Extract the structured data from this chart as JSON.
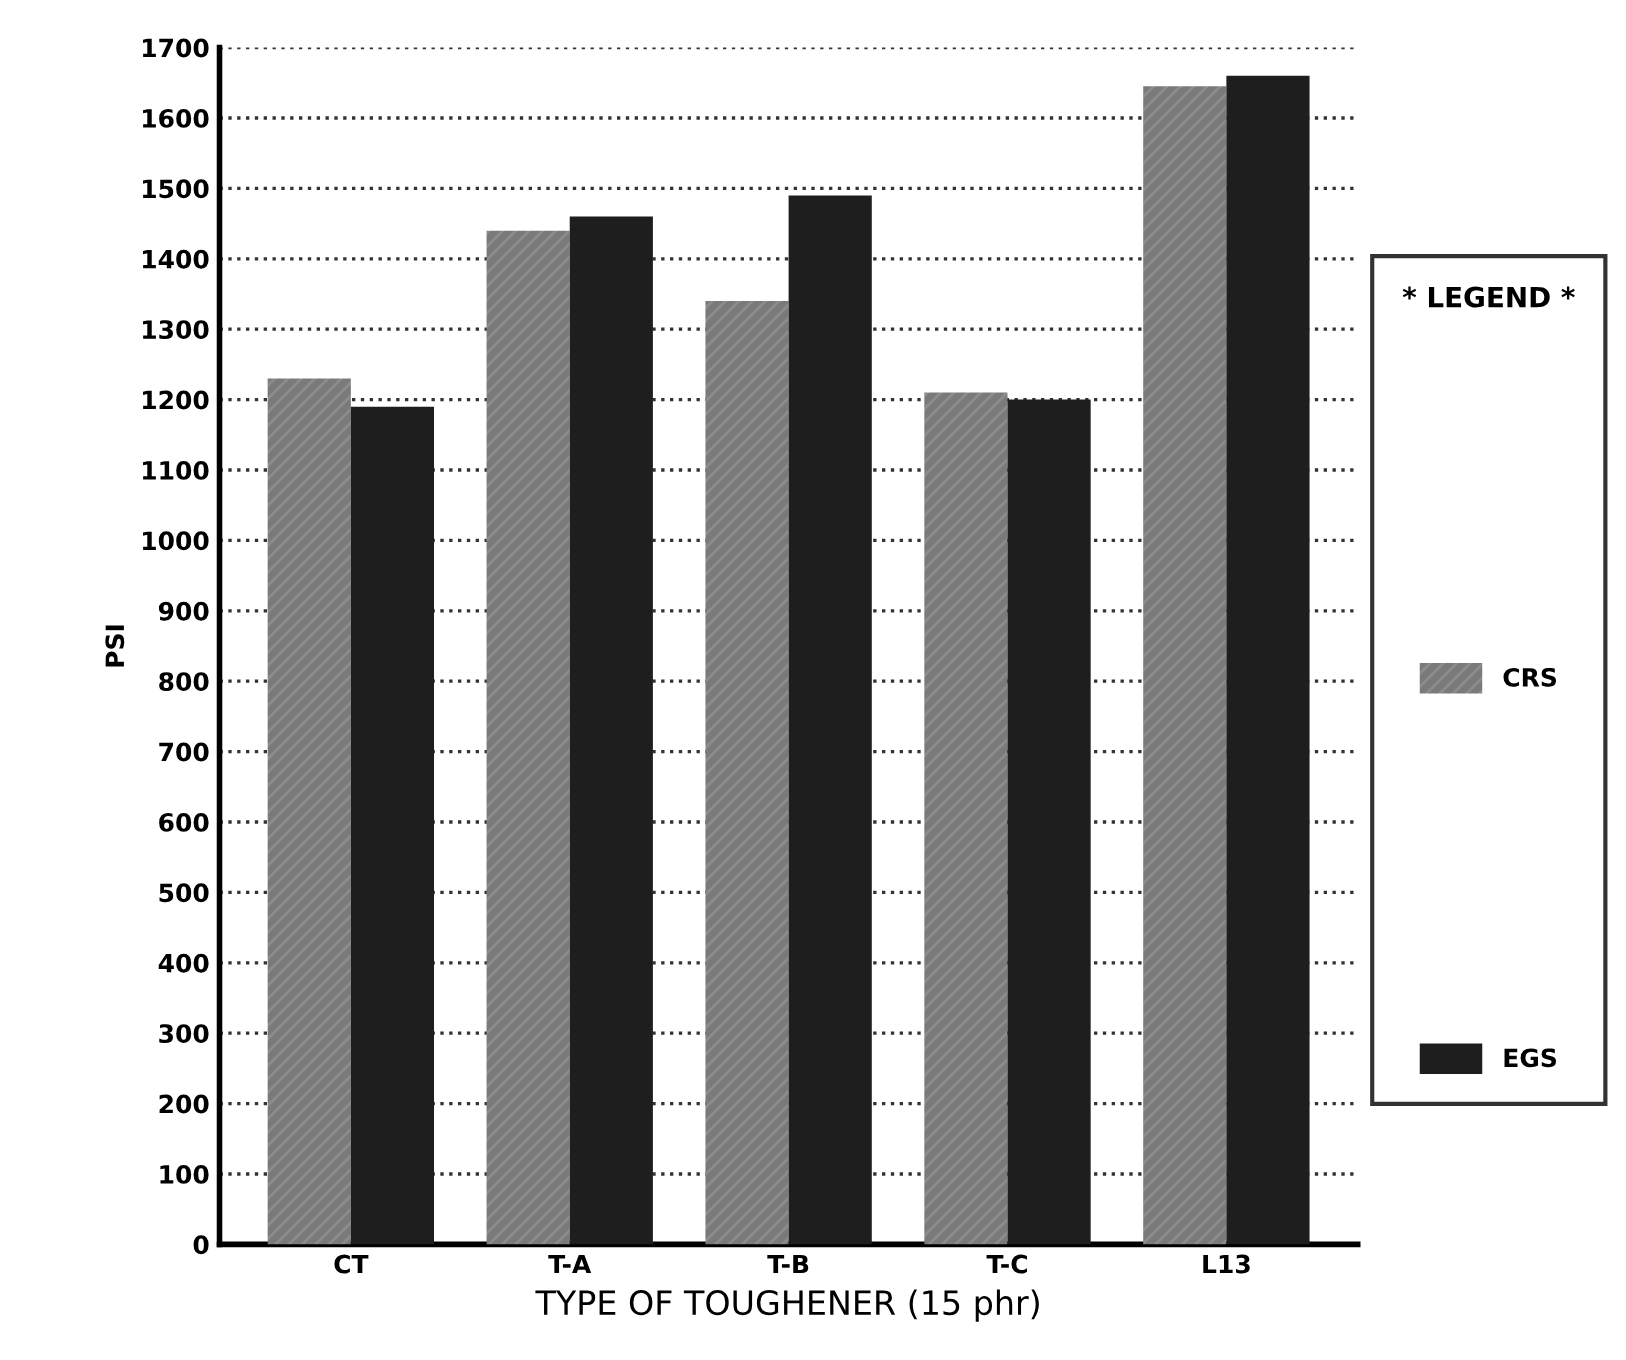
{
  "chart_data": {
    "type": "bar",
    "categories": [
      "CT",
      "T-A",
      "T-B",
      "T-C",
      "L13"
    ],
    "series": [
      {
        "name": "CRS",
        "color": "#7a7a7a",
        "values": [
          1230,
          1440,
          1340,
          1210,
          1645
        ]
      },
      {
        "name": "EGS",
        "color": "#1e1e1e",
        "values": [
          1190,
          1460,
          1490,
          1200,
          1660
        ]
      }
    ],
    "xlabel": "TYPE OF TOUGHENER (15 phr)",
    "ylabel": "PSI",
    "legend_title": "* LEGEND *",
    "ylim": [
      0,
      1700
    ],
    "yticks": [
      0,
      100,
      200,
      300,
      400,
      500,
      600,
      700,
      800,
      900,
      1000,
      1100,
      1200,
      1300,
      1400,
      1500,
      1600,
      1700
    ],
    "grid": "y",
    "legend": "right"
  }
}
